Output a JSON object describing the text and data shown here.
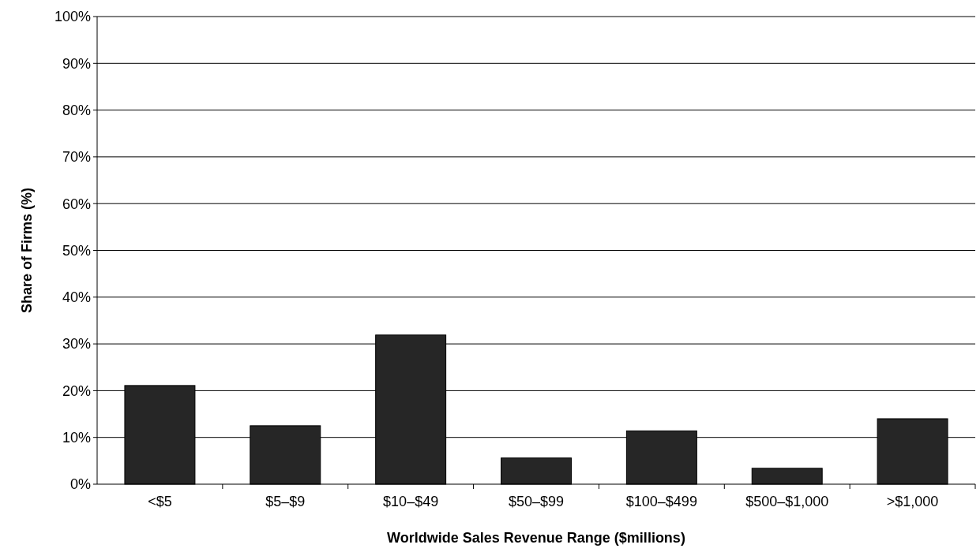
{
  "chart_data": {
    "type": "bar",
    "xlabel": "Worldwide Sales Revenue Range ($millions)",
    "ylabel": "Share of Firms (%)",
    "categories": [
      "<$5",
      "$5–$9",
      "$10–$49",
      "$50–$99",
      "$100–$499",
      "$500–$1,000",
      ">$1,000"
    ],
    "values": [
      21.1,
      12.5,
      31.9,
      5.6,
      11.4,
      3.4,
      14.0
    ],
    "color": "#262626",
    "ylim": [
      0,
      100
    ],
    "yticks": [
      {
        "value": 0,
        "label": "0%"
      },
      {
        "value": 10,
        "label": "10%"
      },
      {
        "value": 20,
        "label": "20%"
      },
      {
        "value": 30,
        "label": "30%"
      },
      {
        "value": 40,
        "label": "40%"
      },
      {
        "value": 50,
        "label": "50%"
      },
      {
        "value": 60,
        "label": "60%"
      },
      {
        "value": 70,
        "label": "70%"
      },
      {
        "value": 80,
        "label": "80%"
      },
      {
        "value": 90,
        "label": "90%"
      },
      {
        "value": 100,
        "label": "100%"
      }
    ],
    "grid": "y"
  }
}
